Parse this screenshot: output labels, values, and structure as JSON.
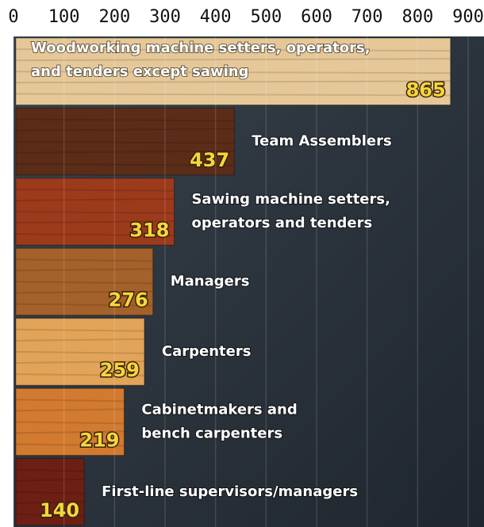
{
  "chart_data": {
    "type": "bar",
    "orientation": "horizontal",
    "categories": [
      [
        "Woodworking machine setters, operators,",
        "and tenders except sawing"
      ],
      [
        "Team Assemblers"
      ],
      [
        "Sawing machine setters,",
        "operators and tenders"
      ],
      [
        "Managers"
      ],
      [
        "Carpenters"
      ],
      [
        "Cabinetmakers and",
        "bench carpenters"
      ],
      [
        "First-line supervisors/managers"
      ]
    ],
    "values": [
      865,
      437,
      318,
      276,
      259,
      219,
      140
    ],
    "colors": [
      "#e6c898",
      "#5b2c18",
      "#9c3a1c",
      "#a5612a",
      "#e2a458",
      "#d27a30",
      "#6c1f14"
    ],
    "xlim": [
      0,
      900
    ],
    "xticks": [
      0,
      100,
      200,
      300,
      400,
      500,
      600,
      700,
      800,
      900
    ],
    "grid": true
  }
}
